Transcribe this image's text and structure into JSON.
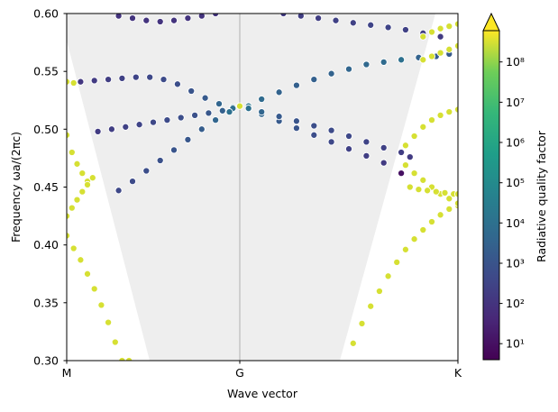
{
  "chart_data": {
    "type": "scatter",
    "title": "",
    "xlabel": "Wave vector",
    "ylabel": "Frequency ωa/(2πc)",
    "ylim": [
      0.3,
      0.6
    ],
    "x_ticks": [
      "M",
      "G",
      "K"
    ],
    "y_ticks": [
      "0.30",
      "0.35",
      "0.40",
      "0.45",
      "0.50",
      "0.55",
      "0.60"
    ],
    "light_cone": {
      "color": "#eeeeee",
      "description": "shaded region above light line"
    },
    "colorbar": {
      "label": "Radiative quality factor",
      "scale": "log",
      "range": [
        4,
        600000000
      ],
      "tick_values": [
        10,
        100,
        1000,
        10000,
        100000,
        1000000,
        10000000,
        100000000
      ],
      "tick_labels": [
        "10¹",
        "10²",
        "10³",
        "10⁴",
        "10⁵",
        "10⁶",
        "10⁷",
        "10⁸"
      ],
      "extend": "max",
      "colormap": "viridis"
    },
    "segments": [
      {
        "name": "M-G",
        "x_range": [
          0,
          1
        ]
      },
      {
        "name": "G-K",
        "x_range": [
          1,
          2
        ]
      }
    ],
    "bands": [
      {
        "segment": "M-G",
        "t": [
          0.08,
          0.16,
          0.24,
          0.32,
          0.4,
          0.48,
          0.56,
          0.64,
          0.72,
          0.8,
          0.88,
          0.96
        ],
        "freq": [
          0.541,
          0.542,
          0.543,
          0.544,
          0.545,
          0.545,
          0.543,
          0.539,
          0.533,
          0.527,
          0.522,
          0.519
        ],
        "q_log10": [
          2.1,
          2.2,
          2.3,
          2.4,
          2.5,
          2.6,
          2.7,
          2.8,
          3.0,
          3.2,
          3.6,
          4.2
        ]
      },
      {
        "segment": "M-G",
        "t": [
          0.18,
          0.26,
          0.34,
          0.42,
          0.5,
          0.58,
          0.66,
          0.74,
          0.82,
          0.9,
          0.96
        ],
        "freq": [
          0.498,
          0.5,
          0.502,
          0.504,
          0.506,
          0.508,
          0.51,
          0.512,
          0.514,
          0.516,
          0.518
        ],
        "q_log10": [
          2.2,
          2.3,
          2.4,
          2.5,
          2.6,
          2.7,
          2.8,
          2.9,
          3.1,
          3.4,
          3.9
        ]
      },
      {
        "segment": "M-G",
        "t": [
          0.3,
          0.38,
          0.46,
          0.54,
          0.62,
          0.7,
          0.78,
          0.86,
          0.94
        ],
        "freq": [
          0.447,
          0.455,
          0.464,
          0.473,
          0.482,
          0.491,
          0.5,
          0.508,
          0.515
        ],
        "q_log10": [
          2.6,
          2.7,
          2.8,
          2.9,
          3.0,
          3.1,
          3.3,
          3.6,
          4.0
        ]
      },
      {
        "segment": "M-G",
        "t": [
          0.3,
          0.38,
          0.46,
          0.54,
          0.62,
          0.7,
          0.78,
          0.86
        ],
        "freq": [
          0.598,
          0.596,
          0.594,
          0.593,
          0.594,
          0.596,
          0.598,
          0.6
        ],
        "q_log10": [
          2.0,
          2.0,
          2.0,
          2.0,
          2.0,
          2.0,
          2.0,
          2.0
        ]
      },
      {
        "segment": "G-K",
        "t": [
          0.04,
          0.1,
          0.18,
          0.26,
          0.34,
          0.42,
          0.5,
          0.58,
          0.66,
          0.74,
          0.82,
          0.9,
          0.96
        ],
        "freq": [
          0.52,
          0.526,
          0.532,
          0.538,
          0.543,
          0.548,
          0.552,
          0.556,
          0.558,
          0.56,
          0.562,
          0.563,
          0.565
        ],
        "q_log10": [
          4.2,
          3.8,
          3.5,
          3.4,
          3.4,
          3.5,
          3.6,
          3.7,
          3.8,
          4.0,
          3.5,
          3.3,
          3.2
        ]
      },
      {
        "segment": "G-K",
        "t": [
          0.04,
          0.1,
          0.18,
          0.26,
          0.34,
          0.42,
          0.5,
          0.58,
          0.66,
          0.74
        ],
        "freq": [
          0.518,
          0.513,
          0.507,
          0.501,
          0.495,
          0.489,
          0.483,
          0.477,
          0.471,
          0.462
        ],
        "q_log10": [
          4.0,
          3.6,
          3.2,
          3.0,
          2.8,
          2.6,
          2.4,
          2.3,
          2.2,
          1.0
        ]
      },
      {
        "segment": "G-K",
        "t": [
          0.04,
          0.1,
          0.18,
          0.26,
          0.34,
          0.42,
          0.5,
          0.58,
          0.66,
          0.74,
          0.78
        ],
        "freq": [
          0.518,
          0.515,
          0.511,
          0.507,
          0.503,
          0.499,
          0.494,
          0.489,
          0.484,
          0.48,
          0.476
        ],
        "q_log10": [
          4.0,
          3.6,
          3.2,
          3.0,
          2.8,
          2.7,
          2.6,
          2.5,
          2.4,
          2.3,
          2.2
        ]
      },
      {
        "segment": "G-K",
        "t": [
          0.2,
          0.28,
          0.36,
          0.44,
          0.52,
          0.6,
          0.68,
          0.76,
          0.84,
          0.92
        ],
        "freq": [
          0.6,
          0.598,
          0.596,
          0.594,
          0.592,
          0.59,
          0.588,
          0.586,
          0.583,
          0.58
        ],
        "q_log10": [
          2.2,
          2.3,
          2.3,
          2.4,
          2.4,
          2.5,
          2.5,
          2.4,
          2.3,
          2.2
        ]
      },
      {
        "segment": "M-G",
        "t": [
          0.0,
          0.04
        ],
        "freq": [
          0.541,
          0.54
        ],
        "q_log10": [
          8.5,
          8.5
        ]
      },
      {
        "segment": "M-G",
        "t": [
          0.0,
          0.03,
          0.06,
          0.09,
          0.12
        ],
        "freq": [
          0.495,
          0.48,
          0.47,
          0.462,
          0.455
        ],
        "q_log10": [
          8.5,
          8.5,
          8.5,
          8.5,
          8.5
        ]
      },
      {
        "segment": "M-G",
        "t": [
          0.0,
          0.03,
          0.06,
          0.09,
          0.12,
          0.15
        ],
        "freq": [
          0.425,
          0.432,
          0.439,
          0.446,
          0.452,
          0.458
        ],
        "q_log10": [
          8.5,
          8.5,
          8.5,
          8.5,
          8.5,
          8.5
        ]
      },
      {
        "segment": "M-G",
        "t": [
          0.0,
          0.04,
          0.08,
          0.12,
          0.16,
          0.2,
          0.24,
          0.28,
          0.32,
          0.36
        ],
        "freq": [
          0.408,
          0.397,
          0.387,
          0.375,
          0.362,
          0.348,
          0.333,
          0.316,
          0.3,
          0.3
        ],
        "q_log10": [
          8.5,
          8.5,
          8.5,
          8.5,
          8.5,
          8.5,
          8.5,
          8.5,
          8.5,
          8.5
        ]
      },
      {
        "segment": "G-K",
        "t": [
          0.52,
          0.56,
          0.6,
          0.64,
          0.68,
          0.72,
          0.76,
          0.8,
          0.84,
          0.88,
          0.92,
          0.96,
          1.0
        ],
        "freq": [
          0.315,
          0.332,
          0.347,
          0.36,
          0.373,
          0.385,
          0.396,
          0.405,
          0.413,
          0.42,
          0.426,
          0.431,
          0.434
        ],
        "q_log10": [
          8.5,
          8.5,
          8.5,
          8.5,
          8.5,
          8.5,
          8.5,
          8.5,
          8.5,
          8.5,
          8.5,
          8.5,
          8.5
        ]
      },
      {
        "segment": "G-K",
        "t": [
          0.76,
          0.8,
          0.84,
          0.88,
          0.92,
          0.96,
          1.0
        ],
        "freq": [
          0.469,
          0.462,
          0.456,
          0.45,
          0.444,
          0.44,
          0.436
        ],
        "q_log10": [
          8.5,
          8.5,
          8.5,
          8.5,
          8.5,
          8.5,
          8.5
        ]
      },
      {
        "segment": "G-K",
        "t": [
          0.78,
          0.82,
          0.86,
          0.9,
          0.94,
          0.98,
          1.0
        ],
        "freq": [
          0.45,
          0.448,
          0.447,
          0.446,
          0.445,
          0.444,
          0.444
        ],
        "q_log10": [
          8.5,
          8.5,
          8.5,
          8.5,
          8.5,
          8.5,
          8.5
        ]
      },
      {
        "segment": "G-K",
        "t": [
          0.76,
          0.8,
          0.84,
          0.88,
          0.92,
          0.96,
          1.0
        ],
        "freq": [
          0.486,
          0.494,
          0.502,
          0.508,
          0.512,
          0.515,
          0.517
        ],
        "q_log10": [
          8.5,
          8.5,
          8.5,
          8.5,
          8.5,
          8.5,
          8.5
        ]
      },
      {
        "segment": "G-K",
        "t": [
          0.84,
          0.88,
          0.92,
          0.96,
          1.0
        ],
        "freq": [
          0.56,
          0.563,
          0.566,
          0.569,
          0.572
        ],
        "q_log10": [
          8.5,
          8.5,
          8.5,
          8.5,
          8.5
        ]
      },
      {
        "segment": "G-K",
        "t": [
          0.84,
          0.88,
          0.92,
          0.96,
          1.0
        ],
        "freq": [
          0.58,
          0.584,
          0.587,
          0.589,
          0.591
        ],
        "q_log10": [
          8.5,
          8.5,
          8.5,
          8.5,
          8.5
        ]
      },
      {
        "segment": "G-K",
        "t": [
          0.0
        ],
        "freq": [
          0.52
        ],
        "q_log10": [
          8.5
        ]
      }
    ]
  }
}
